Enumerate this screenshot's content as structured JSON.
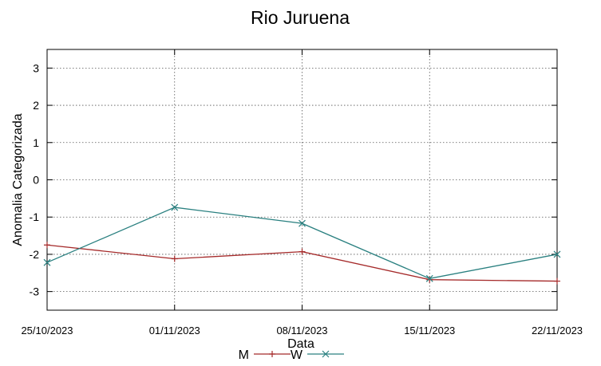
{
  "chart_data": {
    "type": "line",
    "title": "Rio Juruena",
    "xlabel": "Data",
    "ylabel": "Anomalia Categorizada",
    "categories": [
      "25/10/2023",
      "01/11/2023",
      "08/11/2023",
      "15/11/2023",
      "22/11/2023"
    ],
    "ylim": [
      -3.5,
      3.5
    ],
    "yticks": [
      3,
      2,
      1,
      0,
      -1,
      -2,
      -3
    ],
    "grid": true,
    "legend_position": "bottom-center",
    "series": [
      {
        "name": "M",
        "color": "#a52a2a",
        "marker": "plus",
        "values": [
          -1.75,
          -2.12,
          -1.93,
          -2.68,
          -2.72
        ]
      },
      {
        "name": "W",
        "color": "#2a8080",
        "marker": "cross",
        "values": [
          -2.22,
          -0.74,
          -1.17,
          -2.65,
          -2.0
        ]
      }
    ]
  }
}
